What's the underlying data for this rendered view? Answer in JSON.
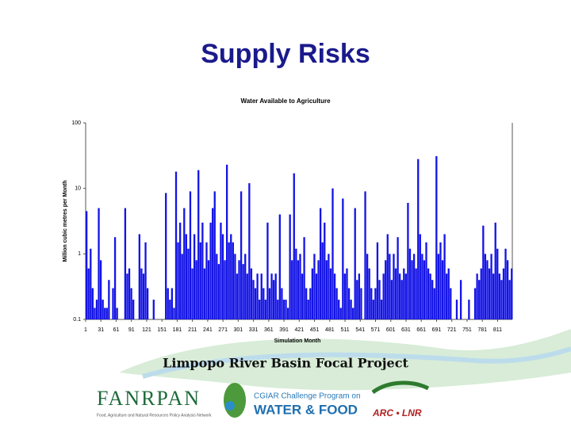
{
  "slide": {
    "title": "Supply Risks"
  },
  "chart_data": {
    "type": "bar",
    "title": "Water Available to Agriculture",
    "x_label": "Simulation Month",
    "y_label": "Million cubic metres per Month",
    "log_y": true,
    "color": "#1414e6",
    "xlim": [
      1,
      840
    ],
    "xticks": [
      1,
      31,
      61,
      91,
      121,
      151,
      181,
      211,
      241,
      271,
      301,
      331,
      361,
      391,
      421,
      451,
      481,
      511,
      541,
      571,
      601,
      631,
      661,
      691,
      721,
      751,
      781,
      811
    ],
    "ylim": [
      0.1,
      100
    ],
    "yticks": [
      0.1,
      1,
      10,
      100
    ],
    "x": [
      1,
      5,
      9,
      13,
      17,
      21,
      25,
      29,
      33,
      37,
      41,
      45,
      49,
      53,
      57,
      61,
      65,
      69,
      73,
      77,
      81,
      85,
      89,
      93,
      97,
      101,
      105,
      109,
      113,
      117,
      121,
      125,
      129,
      133,
      137,
      141,
      145,
      149,
      153,
      157,
      161,
      165,
      169,
      173,
      177,
      181,
      185,
      189,
      193,
      197,
      201,
      205,
      209,
      213,
      217,
      221,
      225,
      229,
      233,
      237,
      241,
      245,
      249,
      253,
      257,
      261,
      265,
      269,
      273,
      277,
      281,
      285,
      289,
      293,
      297,
      301,
      305,
      309,
      313,
      317,
      321,
      325,
      329,
      333,
      337,
      341,
      345,
      349,
      353,
      357,
      361,
      365,
      369,
      373,
      377,
      381,
      385,
      389,
      393,
      397,
      401,
      405,
      409,
      413,
      417,
      421,
      425,
      429,
      433,
      437,
      441,
      445,
      449,
      453,
      457,
      461,
      465,
      469,
      473,
      477,
      481,
      485,
      489,
      493,
      497,
      501,
      505,
      509,
      513,
      517,
      521,
      525,
      529,
      533,
      537,
      541,
      545,
      549,
      553,
      557,
      561,
      565,
      569,
      573,
      577,
      581,
      585,
      589,
      593,
      597,
      601,
      605,
      609,
      613,
      617,
      621,
      625,
      629,
      633,
      637,
      641,
      645,
      649,
      653,
      657,
      661,
      665,
      669,
      673,
      677,
      681,
      685,
      689,
      693,
      697,
      701,
      705,
      709,
      713,
      717,
      721,
      725,
      729,
      733,
      737,
      741,
      745,
      749,
      753,
      757,
      761,
      765,
      769,
      773,
      777,
      781,
      785,
      789,
      793,
      797,
      801,
      805,
      809,
      813,
      817,
      821,
      825,
      829,
      833,
      837
    ],
    "values": [
      4.5,
      0.6,
      1.2,
      0.3,
      0.15,
      0.2,
      5,
      0.8,
      0.2,
      0.15,
      0.15,
      0.4,
      null,
      0.3,
      1.8,
      0.15,
      null,
      null,
      null,
      5,
      0.5,
      0.6,
      0.3,
      0.2,
      null,
      null,
      2,
      0.6,
      0.5,
      1.5,
      0.3,
      null,
      null,
      0.2,
      null,
      null,
      null,
      null,
      null,
      8.5,
      0.3,
      0.2,
      0.3,
      0.15,
      18,
      1.5,
      3,
      1,
      5,
      2,
      1.2,
      9,
      0.6,
      2,
      0.8,
      19,
      1.5,
      3,
      0.6,
      1.5,
      0.8,
      3,
      5,
      9,
      1,
      0.7,
      3,
      2,
      0.8,
      23,
      1.5,
      2,
      1.5,
      1,
      0.5,
      0.8,
      9,
      0.7,
      1,
      0.5,
      12,
      0.6,
      0.4,
      0.3,
      0.5,
      0.2,
      0.5,
      0.3,
      0.2,
      3,
      0.3,
      0.5,
      0.4,
      0.5,
      0.2,
      4,
      0.3,
      0.2,
      0.2,
      0.15,
      4,
      0.8,
      17,
      1.2,
      0.8,
      1,
      0.5,
      1.8,
      0.3,
      0.2,
      0.3,
      0.6,
      1,
      0.5,
      0.8,
      5,
      1.5,
      3,
      0.8,
      1,
      0.6,
      10,
      0.5,
      0.3,
      0.2,
      0.15,
      7,
      0.5,
      0.6,
      0.3,
      0.2,
      0.15,
      5,
      0.4,
      0.5,
      0.3,
      null,
      9,
      1,
      0.6,
      0.3,
      0.2,
      0.3,
      1.5,
      0.4,
      0.2,
      0.5,
      0.8,
      2,
      1,
      0.4,
      1,
      0.6,
      1.8,
      0.5,
      0.4,
      0.6,
      0.5,
      6,
      1.2,
      0.8,
      1,
      0.6,
      28,
      2,
      1,
      0.8,
      1.5,
      0.6,
      0.5,
      0.4,
      0.3,
      31,
      1,
      1.5,
      0.8,
      2,
      0.5,
      0.6,
      0.3,
      null,
      null,
      0.2,
      null,
      0.4,
      null,
      null,
      null,
      0.2,
      null,
      null,
      0.3,
      0.5,
      0.4,
      0.6,
      2.7,
      1,
      0.8,
      0.6,
      1,
      0.5,
      3,
      1.2,
      0.5,
      0.4,
      0.6,
      1.2,
      0.8,
      0.4,
      0.6
    ]
  },
  "footer": {
    "project": "Limpopo River Basin Focal Project",
    "fanrpan": "FANRPAN",
    "fanrpan_sub": "Food, Agriculture and Natural Resources Policy Analysis Network",
    "cgiar": "CGIAR Challenge Program on",
    "water_food": "WATER & FOOD",
    "arc": "ARC • LNR"
  }
}
